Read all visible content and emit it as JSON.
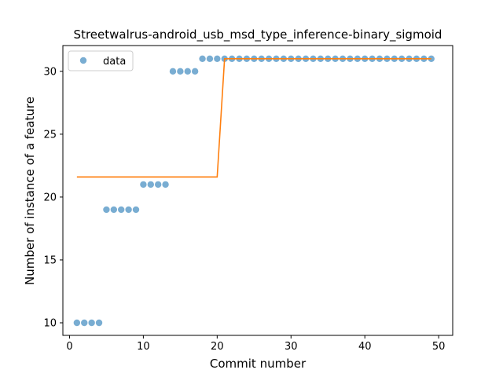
{
  "chart_data": {
    "type": "scatter",
    "title": "Streetwalrus-android_usb_msd_type_inference-binary_sigmoid",
    "xlabel": "Commit number",
    "ylabel": "Number of instance of a feature",
    "xlim": [
      -0.9,
      51.9
    ],
    "ylim": [
      9.0,
      32.05
    ],
    "xticks": [
      0,
      10,
      20,
      30,
      40,
      50
    ],
    "yticks": [
      10,
      15,
      20,
      25,
      30
    ],
    "grid": false,
    "legend": {
      "position": "top-left",
      "entries": [
        "data"
      ]
    },
    "series": [
      {
        "name": "data",
        "kind": "scatter",
        "color": "#1f77b4",
        "x": [
          1,
          2,
          3,
          4,
          5,
          6,
          7,
          8,
          9,
          10,
          11,
          12,
          13,
          14,
          15,
          16,
          17,
          18,
          19,
          20,
          21,
          22,
          23,
          24,
          25,
          26,
          27,
          28,
          29,
          30,
          31,
          32,
          33,
          34,
          35,
          36,
          37,
          38,
          39,
          40,
          41,
          42,
          43,
          44,
          45,
          46,
          47,
          48,
          49
        ],
        "y": [
          10,
          10,
          10,
          10,
          19,
          19,
          19,
          19,
          19,
          21,
          21,
          21,
          21,
          30,
          30,
          30,
          30,
          31,
          31,
          31,
          31,
          31,
          31,
          31,
          31,
          31,
          31,
          31,
          31,
          31,
          31,
          31,
          31,
          31,
          31,
          31,
          31,
          31,
          31,
          31,
          31,
          31,
          31,
          31,
          31,
          31,
          31,
          31,
          31
        ]
      },
      {
        "kind": "line",
        "color": "#ff7f0e",
        "x": [
          1,
          20,
          21,
          49
        ],
        "y": [
          21.6,
          21.6,
          31,
          31
        ]
      }
    ]
  }
}
